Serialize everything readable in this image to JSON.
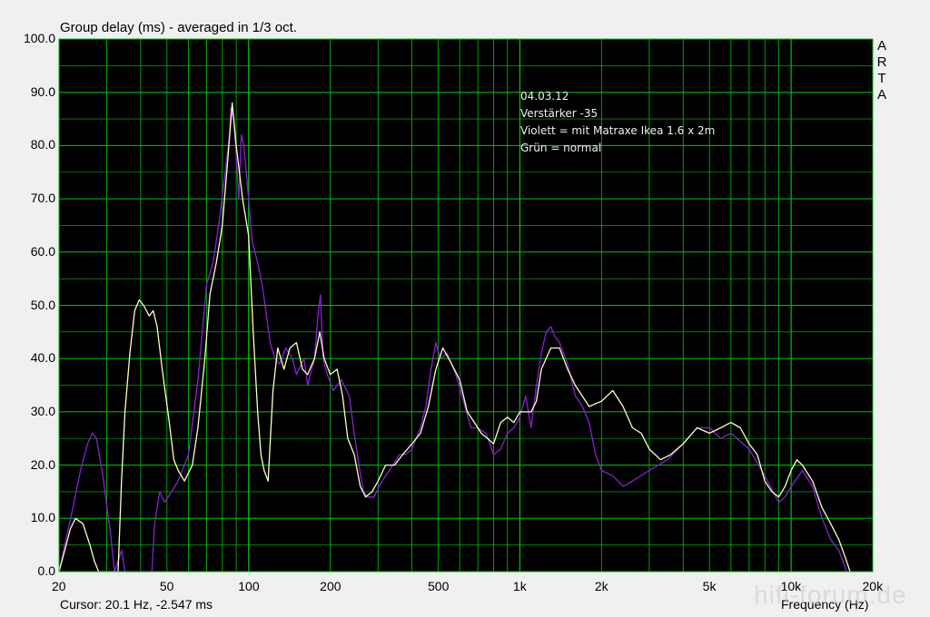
{
  "header": {
    "title": "Group delay (ms) - averaged in 1/3 oct."
  },
  "brand": [
    "A",
    "R",
    "T",
    "A"
  ],
  "status": {
    "cursor_readout": "Cursor: 20.1 Hz, -2.547 ms",
    "watermark": "hifi-forum.de"
  },
  "annotation": [
    "04.03.12",
    "Verstärker -35",
    "Violett = mit Matraxe Ikea 1.6 x 2m",
    "Grün = normal"
  ],
  "colors": {
    "plot_bg": "#000000",
    "grid": "#00c800",
    "series_violet": "#8b1fd6",
    "series_yellow": "#ffffc0"
  },
  "chart_data": {
    "type": "line",
    "title": "Group delay (ms) - averaged in 1/3 oct.",
    "xlabel": "Frequency (Hz)",
    "ylabel": "",
    "xscale": "log",
    "xlim": [
      20,
      20000
    ],
    "ylim": [
      0,
      100
    ],
    "grid": true,
    "xticks": [
      {
        "v": 20,
        "t": "20"
      },
      {
        "v": 50,
        "t": "50"
      },
      {
        "v": 100,
        "t": "100"
      },
      {
        "v": 200,
        "t": "200"
      },
      {
        "v": 500,
        "t": "500"
      },
      {
        "v": 1000,
        "t": "1k"
      },
      {
        "v": 2000,
        "t": "2k"
      },
      {
        "v": 5000,
        "t": "5k"
      },
      {
        "v": 10000,
        "t": "10k"
      },
      {
        "v": 20000,
        "t": "20k"
      }
    ],
    "yticks": [
      "0.0",
      "10.0",
      "20.0",
      "30.0",
      "40.0",
      "50.0",
      "60.0",
      "70.0",
      "80.0",
      "90.0",
      "100.0"
    ],
    "series": [
      {
        "color": "#8b1fd6",
        "points": [
          [
            20,
            0
          ],
          [
            21,
            5
          ],
          [
            22.5,
            12
          ],
          [
            24,
            19
          ],
          [
            25.5,
            24
          ],
          [
            26.5,
            26
          ],
          [
            27.5,
            25
          ],
          [
            29,
            18
          ],
          [
            31,
            7
          ],
          [
            32,
            0
          ],
          [
            33,
            2
          ],
          [
            34,
            4
          ],
          [
            35,
            0
          ],
          [
            40,
            0
          ],
          [
            44,
            0
          ],
          [
            45,
            9
          ],
          [
            47,
            15
          ],
          [
            49,
            13
          ],
          [
            52,
            15
          ],
          [
            55,
            17
          ],
          [
            60,
            22
          ],
          [
            65,
            36
          ],
          [
            70,
            54
          ],
          [
            74,
            58
          ],
          [
            78,
            66
          ],
          [
            82,
            75
          ],
          [
            85,
            82
          ],
          [
            86,
            87
          ],
          [
            88,
            85
          ],
          [
            90,
            78
          ],
          [
            92,
            70
          ],
          [
            94,
            82
          ],
          [
            96,
            80
          ],
          [
            100,
            70
          ],
          [
            103,
            62
          ],
          [
            108,
            58
          ],
          [
            112,
            54
          ],
          [
            115,
            50
          ],
          [
            120,
            43
          ],
          [
            125,
            40
          ],
          [
            130,
            39
          ],
          [
            137,
            42
          ],
          [
            145,
            40
          ],
          [
            150,
            37
          ],
          [
            160,
            40
          ],
          [
            165,
            35
          ],
          [
            175,
            40
          ],
          [
            180,
            48
          ],
          [
            184,
            52
          ],
          [
            188,
            40
          ],
          [
            195,
            37
          ],
          [
            205,
            34
          ],
          [
            220,
            36
          ],
          [
            235,
            33
          ],
          [
            245,
            26
          ],
          [
            255,
            20
          ],
          [
            265,
            15
          ],
          [
            275,
            14
          ],
          [
            290,
            14
          ],
          [
            310,
            17
          ],
          [
            330,
            19
          ],
          [
            360,
            22
          ],
          [
            380,
            22
          ],
          [
            400,
            23
          ],
          [
            430,
            27
          ],
          [
            450,
            31
          ],
          [
            470,
            38
          ],
          [
            490,
            43
          ],
          [
            510,
            40
          ],
          [
            540,
            41
          ],
          [
            580,
            37
          ],
          [
            620,
            32
          ],
          [
            660,
            27
          ],
          [
            700,
            27
          ],
          [
            750,
            26
          ],
          [
            800,
            22
          ],
          [
            850,
            23
          ],
          [
            900,
            26
          ],
          [
            950,
            27
          ],
          [
            1000,
            29
          ],
          [
            1050,
            33
          ],
          [
            1100,
            27
          ],
          [
            1150,
            35
          ],
          [
            1200,
            41
          ],
          [
            1250,
            45
          ],
          [
            1300,
            46
          ],
          [
            1350,
            44
          ],
          [
            1400,
            43
          ],
          [
            1500,
            39
          ],
          [
            1600,
            33
          ],
          [
            1700,
            31
          ],
          [
            1800,
            28
          ],
          [
            1900,
            22
          ],
          [
            2000,
            19
          ],
          [
            2200,
            18
          ],
          [
            2400,
            16
          ],
          [
            2600,
            17
          ],
          [
            3000,
            19
          ],
          [
            3500,
            21
          ],
          [
            4000,
            24
          ],
          [
            4500,
            27
          ],
          [
            5000,
            27
          ],
          [
            5500,
            25
          ],
          [
            6000,
            26
          ],
          [
            7000,
            23
          ],
          [
            8000,
            18
          ],
          [
            9000,
            13
          ],
          [
            9500,
            14
          ],
          [
            10000,
            16
          ],
          [
            11000,
            19
          ],
          [
            12000,
            16
          ],
          [
            13000,
            10
          ],
          [
            14000,
            6
          ],
          [
            15000,
            4
          ],
          [
            16000,
            0
          ]
        ]
      },
      {
        "color": "#ffffc0",
        "points": [
          [
            20,
            0
          ],
          [
            21,
            4
          ],
          [
            22,
            8
          ],
          [
            23,
            10
          ],
          [
            24.5,
            9
          ],
          [
            26,
            5
          ],
          [
            27,
            2
          ],
          [
            28,
            0
          ],
          [
            33,
            0
          ],
          [
            34,
            17
          ],
          [
            35,
            30
          ],
          [
            36.5,
            41
          ],
          [
            38,
            49
          ],
          [
            39.5,
            51
          ],
          [
            41,
            50
          ],
          [
            43,
            48
          ],
          [
            44.5,
            49
          ],
          [
            46,
            46
          ],
          [
            48,
            38
          ],
          [
            51,
            28
          ],
          [
            53,
            21
          ],
          [
            55,
            19
          ],
          [
            58,
            17
          ],
          [
            62,
            20
          ],
          [
            65,
            27
          ],
          [
            69,
            40
          ],
          [
            72,
            52
          ],
          [
            76,
            58
          ],
          [
            80,
            65
          ],
          [
            84,
            78
          ],
          [
            87,
            88
          ],
          [
            90,
            80
          ],
          [
            95,
            70
          ],
          [
            100,
            63
          ],
          [
            104,
            45
          ],
          [
            108,
            30
          ],
          [
            111,
            22
          ],
          [
            114,
            19
          ],
          [
            118,
            17
          ],
          [
            123,
            34
          ],
          [
            128,
            42
          ],
          [
            135,
            38
          ],
          [
            142,
            42
          ],
          [
            150,
            43
          ],
          [
            158,
            38
          ],
          [
            165,
            37
          ],
          [
            175,
            40
          ],
          [
            183,
            45
          ],
          [
            190,
            40
          ],
          [
            200,
            37
          ],
          [
            212,
            38
          ],
          [
            222,
            33
          ],
          [
            232,
            25
          ],
          [
            245,
            22
          ],
          [
            258,
            16
          ],
          [
            270,
            14
          ],
          [
            285,
            15
          ],
          [
            300,
            17
          ],
          [
            320,
            20
          ],
          [
            345,
            20
          ],
          [
            370,
            22
          ],
          [
            400,
            24
          ],
          [
            430,
            26
          ],
          [
            460,
            31
          ],
          [
            490,
            38
          ],
          [
            520,
            42
          ],
          [
            560,
            39
          ],
          [
            600,
            36
          ],
          [
            640,
            30
          ],
          [
            680,
            28
          ],
          [
            720,
            26
          ],
          [
            760,
            25
          ],
          [
            800,
            24
          ],
          [
            850,
            28
          ],
          [
            900,
            29
          ],
          [
            950,
            28
          ],
          [
            1000,
            30
          ],
          [
            1100,
            30
          ],
          [
            1150,
            32
          ],
          [
            1200,
            38
          ],
          [
            1300,
            42
          ],
          [
            1400,
            42
          ],
          [
            1500,
            38
          ],
          [
            1600,
            35
          ],
          [
            1800,
            31
          ],
          [
            2000,
            32
          ],
          [
            2200,
            34
          ],
          [
            2400,
            31
          ],
          [
            2600,
            27
          ],
          [
            2800,
            26
          ],
          [
            3000,
            23
          ],
          [
            3300,
            21
          ],
          [
            3600,
            22
          ],
          [
            4000,
            24
          ],
          [
            4500,
            27
          ],
          [
            5000,
            26
          ],
          [
            5500,
            27
          ],
          [
            6000,
            28
          ],
          [
            6500,
            27
          ],
          [
            7000,
            24
          ],
          [
            7500,
            22
          ],
          [
            8000,
            17
          ],
          [
            8500,
            15
          ],
          [
            9000,
            14
          ],
          [
            9500,
            16
          ],
          [
            10000,
            19
          ],
          [
            10500,
            21
          ],
          [
            11000,
            20
          ],
          [
            12000,
            17
          ],
          [
            13000,
            12
          ],
          [
            14000,
            9
          ],
          [
            15000,
            6
          ],
          [
            16000,
            2
          ],
          [
            16500,
            0
          ]
        ]
      }
    ]
  }
}
